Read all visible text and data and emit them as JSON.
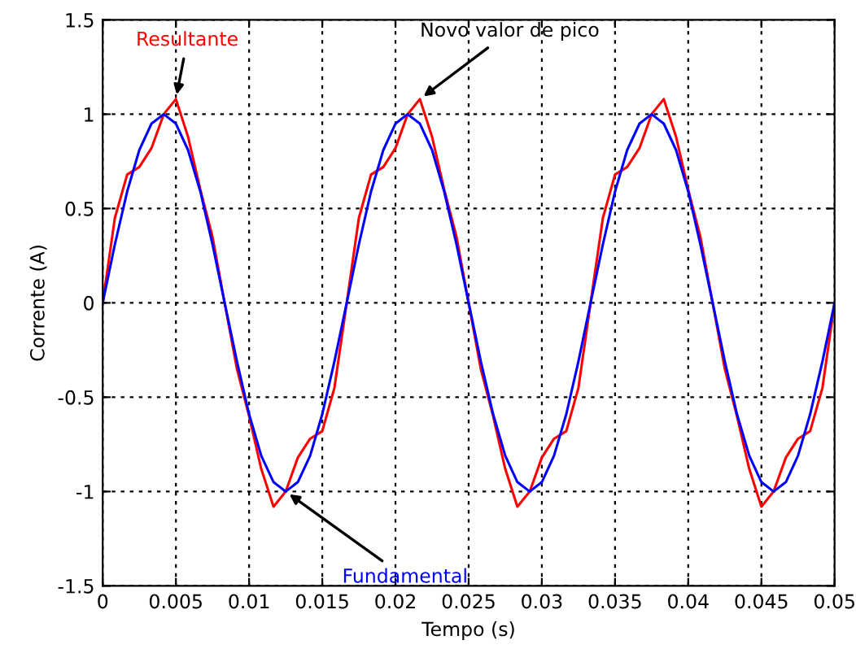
{
  "chart_data": {
    "type": "line",
    "xlabel": "Tempo (s)",
    "ylabel": "Corrente (A)",
    "xlim": [
      0,
      0.05
    ],
    "ylim": [
      -1.5,
      1.5
    ],
    "xticks": [
      0,
      0.005,
      0.01,
      0.015,
      0.02,
      0.025,
      0.03,
      0.035,
      0.04,
      0.045,
      0.05
    ],
    "yticks": [
      -1.5,
      -1,
      -0.5,
      0,
      0.5,
      1,
      1.5
    ],
    "grid": true,
    "line_style": "solid",
    "annotations": [
      {
        "text": "Novo valor de pico",
        "x": 0.02167,
        "y": 1.08
      }
    ],
    "series": [
      {
        "name": "Resultante",
        "color": "#ff0000",
        "x": [
          0,
          0.00083,
          0.00167,
          0.0025,
          0.00333,
          0.00417,
          0.005,
          0.00583,
          0.00667,
          0.0075,
          0.00833,
          0.00917,
          0.01,
          0.01083,
          0.01167,
          0.0125,
          0.01333,
          0.01417,
          0.015,
          0.01583,
          0.01667,
          0.0175,
          0.01833,
          0.01917,
          0.02,
          0.02083,
          0.02167,
          0.0225,
          0.02333,
          0.02417,
          0.025,
          0.02583,
          0.02667,
          0.0275,
          0.02833,
          0.02917,
          0.03,
          0.03083,
          0.03167,
          0.0325,
          0.03333,
          0.03417,
          0.035,
          0.03583,
          0.03667,
          0.0375,
          0.03833,
          0.03917,
          0.04,
          0.04083,
          0.04167,
          0.0425,
          0.04333,
          0.04417,
          0.045,
          0.04583,
          0.04667,
          0.0475,
          0.04833,
          0.04917,
          0.05
        ],
        "values": [
          0,
          0.45,
          0.68,
          0.72,
          0.82,
          1.0,
          1.08,
          0.88,
          0.6,
          0.35,
          0,
          -0.35,
          -0.6,
          -0.88,
          -1.08,
          -1.0,
          -0.82,
          -0.72,
          -0.68,
          -0.45,
          0,
          0.45,
          0.68,
          0.72,
          0.82,
          1.0,
          1.08,
          0.88,
          0.6,
          0.35,
          0,
          -0.35,
          -0.6,
          -0.88,
          -1.08,
          -1.0,
          -0.82,
          -0.72,
          -0.68,
          -0.45,
          0,
          0.45,
          0.68,
          0.72,
          0.82,
          1.0,
          1.08,
          0.88,
          0.6,
          0.35,
          0,
          -0.35,
          -0.6,
          -0.88,
          -1.08,
          -1.0,
          -0.82,
          -0.72,
          -0.68,
          -0.45,
          0
        ]
      },
      {
        "name": "Fundamental",
        "color": "#0000ff",
        "x": [
          0,
          0.00083,
          0.00167,
          0.0025,
          0.00333,
          0.00417,
          0.005,
          0.00583,
          0.00667,
          0.0075,
          0.00833,
          0.00917,
          0.01,
          0.01083,
          0.01167,
          0.0125,
          0.01333,
          0.01417,
          0.015,
          0.01583,
          0.01667,
          0.0175,
          0.01833,
          0.01917,
          0.02,
          0.02083,
          0.02167,
          0.0225,
          0.02333,
          0.02417,
          0.025,
          0.02583,
          0.02667,
          0.0275,
          0.02833,
          0.02917,
          0.03,
          0.03083,
          0.03167,
          0.0325,
          0.03333,
          0.03417,
          0.035,
          0.03583,
          0.03667,
          0.0375,
          0.03833,
          0.03917,
          0.04,
          0.04083,
          0.04167,
          0.0425,
          0.04333,
          0.04417,
          0.045,
          0.04583,
          0.04667,
          0.0475,
          0.04833,
          0.04917,
          0.05
        ],
        "values": [
          0,
          0.31,
          0.59,
          0.81,
          0.95,
          1,
          0.95,
          0.81,
          0.59,
          0.31,
          0,
          -0.31,
          -0.59,
          -0.81,
          -0.95,
          -1,
          -0.95,
          -0.81,
          -0.59,
          -0.31,
          0,
          0.31,
          0.59,
          0.81,
          0.95,
          1,
          0.95,
          0.81,
          0.59,
          0.31,
          0,
          -0.31,
          -0.59,
          -0.81,
          -0.95,
          -1,
          -0.95,
          -0.81,
          -0.59,
          -0.31,
          0,
          0.31,
          0.59,
          0.81,
          0.95,
          1,
          0.95,
          0.81,
          0.59,
          0.31,
          0,
          -0.31,
          -0.59,
          -0.81,
          -0.95,
          -1,
          -0.95,
          -0.81,
          -0.59,
          -0.31,
          0
        ]
      }
    ]
  }
}
